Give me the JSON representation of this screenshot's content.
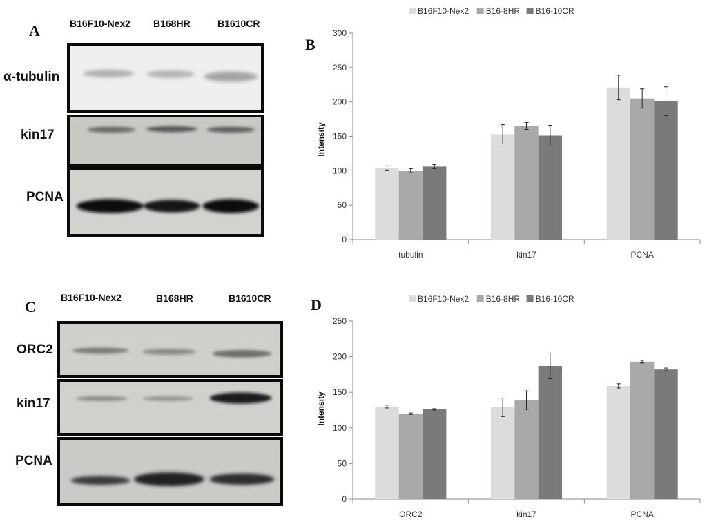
{
  "panels": {
    "a": {
      "letter": "A",
      "lanes": [
        "B16F10-Nex2",
        "B168HR",
        "B1610CR"
      ],
      "rows": [
        "α-tubulin",
        "kin17",
        "PCNA"
      ]
    },
    "c": {
      "letter": "C",
      "lanes": [
        "B16F10-Nex2",
        "B168HR",
        "B1610CR"
      ],
      "rows": [
        "ORC2",
        "kin17",
        "PCNA"
      ]
    }
  },
  "chart_data": [
    {
      "type": "bar",
      "panel_letter": "B",
      "categories": [
        "tubulin",
        "kin17",
        "PCNA"
      ],
      "series": [
        {
          "name": "B16F10-Nex2",
          "color": "#dcdcdc",
          "values": [
            104,
            153,
            221
          ],
          "errors": [
            3,
            14,
            18
          ]
        },
        {
          "name": "B16-8HR",
          "color": "#a9a9a9",
          "values": [
            100,
            165,
            205
          ],
          "errors": [
            3,
            5,
            14
          ]
        },
        {
          "name": "B16-10CR",
          "color": "#7a7a7a",
          "values": [
            106,
            151,
            201
          ],
          "errors": [
            3,
            15,
            21
          ]
        }
      ],
      "xlabel": "",
      "ylabel": "Intensity",
      "ylim": [
        0,
        300
      ],
      "yticks": [
        0,
        50,
        100,
        150,
        200,
        250,
        300
      ],
      "grid": false,
      "legend": "top"
    },
    {
      "type": "bar",
      "panel_letter": "D",
      "categories": [
        "ORC2",
        "kin17",
        "PCNA"
      ],
      "series": [
        {
          "name": "B16F10-Nex2",
          "color": "#dcdcdc",
          "values": [
            130,
            129,
            159
          ],
          "errors": [
            2,
            13,
            3
          ]
        },
        {
          "name": "B16-8HR",
          "color": "#a9a9a9",
          "values": [
            120,
            139,
            193
          ],
          "errors": [
            1,
            13,
            2
          ]
        },
        {
          "name": "B16-10CR",
          "color": "#7a7a7a",
          "values": [
            126,
            187,
            182
          ],
          "errors": [
            1,
            18,
            2
          ]
        }
      ],
      "xlabel": "",
      "ylabel": "Intensity",
      "ylim": [
        0,
        250
      ],
      "yticks": [
        0,
        50,
        100,
        150,
        200,
        250
      ],
      "grid": false,
      "legend": "top"
    }
  ]
}
